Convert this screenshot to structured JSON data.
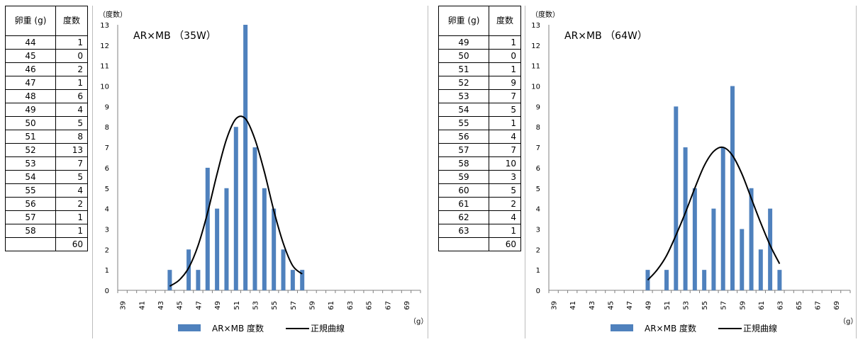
{
  "tables": [
    {
      "header_weight": "卵重 (g)",
      "header_count": "度数",
      "rows": [
        {
          "w": "44",
          "c": "1"
        },
        {
          "w": "45",
          "c": "0"
        },
        {
          "w": "46",
          "c": "2"
        },
        {
          "w": "47",
          "c": "1"
        },
        {
          "w": "48",
          "c": "6"
        },
        {
          "w": "49",
          "c": "4"
        },
        {
          "w": "50",
          "c": "5"
        },
        {
          "w": "51",
          "c": "8"
        },
        {
          "w": "52",
          "c": "13"
        },
        {
          "w": "53",
          "c": "7"
        },
        {
          "w": "54",
          "c": "5"
        },
        {
          "w": "55",
          "c": "4"
        },
        {
          "w": "56",
          "c": "2"
        },
        {
          "w": "57",
          "c": "1"
        },
        {
          "w": "58",
          "c": "1"
        }
      ],
      "total": "60"
    },
    {
      "header_weight": "卵重 (g)",
      "header_count": "度数",
      "rows": [
        {
          "w": "49",
          "c": "1"
        },
        {
          "w": "50",
          "c": "0"
        },
        {
          "w": "51",
          "c": "1"
        },
        {
          "w": "52",
          "c": "9"
        },
        {
          "w": "53",
          "c": "7"
        },
        {
          "w": "54",
          "c": "5"
        },
        {
          "w": "55",
          "c": "1"
        },
        {
          "w": "56",
          "c": "4"
        },
        {
          "w": "57",
          "c": "7"
        },
        {
          "w": "58",
          "c": "10"
        },
        {
          "w": "59",
          "c": "3"
        },
        {
          "w": "60",
          "c": "5"
        },
        {
          "w": "61",
          "c": "2"
        },
        {
          "w": "62",
          "c": "4"
        },
        {
          "w": "63",
          "c": "1"
        }
      ],
      "total": "60"
    }
  ],
  "chart_data": [
    {
      "type": "bar",
      "title": "AR×MB （35W）",
      "ylabel": "（度数）",
      "xlabel": "（g）",
      "x": [
        39,
        40,
        41,
        42,
        43,
        44,
        45,
        46,
        47,
        48,
        49,
        50,
        51,
        52,
        53,
        54,
        55,
        56,
        57,
        58,
        59,
        60,
        61,
        62,
        63,
        64,
        65,
        66,
        67,
        68,
        69,
        70
      ],
      "xticks": [
        "39",
        "41",
        "43",
        "45",
        "47",
        "49",
        "51",
        "53",
        "55",
        "57",
        "59",
        "61",
        "63",
        "65",
        "67",
        "69"
      ],
      "ylim": [
        0,
        13
      ],
      "yticks": [
        "0",
        "1",
        "2",
        "3",
        "4",
        "5",
        "6",
        "7",
        "8",
        "9",
        "10",
        "11",
        "12",
        "13"
      ],
      "series": [
        {
          "name": "AR×MB 度数",
          "type": "bar",
          "color": "#4f81bd",
          "x": [
            44,
            45,
            46,
            47,
            48,
            49,
            50,
            51,
            52,
            53,
            54,
            55,
            56,
            57,
            58
          ],
          "values": [
            1,
            0,
            2,
            1,
            6,
            4,
            5,
            8,
            13,
            7,
            5,
            4,
            2,
            1,
            1
          ]
        },
        {
          "name": "正規曲線",
          "type": "line",
          "color": "#000000",
          "x": [
            44,
            45,
            46,
            47,
            48,
            49,
            50,
            51,
            52,
            53,
            54,
            55,
            56,
            57,
            58
          ],
          "values": [
            0.2,
            0.5,
            1.1,
            2.2,
            3.8,
            5.7,
            7.4,
            8.4,
            8.4,
            7.4,
            5.8,
            3.9,
            2.3,
            1.2,
            0.8
          ]
        }
      ],
      "legend": "bottom"
    },
    {
      "type": "bar",
      "title": "AR×MB （64W）",
      "ylabel": "（度数）",
      "xlabel": "（g）",
      "x": [
        39,
        40,
        41,
        42,
        43,
        44,
        45,
        46,
        47,
        48,
        49,
        50,
        51,
        52,
        53,
        54,
        55,
        56,
        57,
        58,
        59,
        60,
        61,
        62,
        63,
        64,
        65,
        66,
        67,
        68,
        69,
        70
      ],
      "xticks": [
        "39",
        "41",
        "43",
        "45",
        "47",
        "49",
        "51",
        "53",
        "55",
        "57",
        "59",
        "61",
        "63",
        "65",
        "67",
        "69"
      ],
      "ylim": [
        0,
        13
      ],
      "yticks": [
        "0",
        "1",
        "2",
        "3",
        "4",
        "5",
        "6",
        "7",
        "8",
        "9",
        "10",
        "11",
        "12",
        "13"
      ],
      "series": [
        {
          "name": "AR×MB 度数",
          "type": "bar",
          "color": "#4f81bd",
          "x": [
            49,
            50,
            51,
            52,
            53,
            54,
            55,
            56,
            57,
            58,
            59,
            60,
            61,
            62,
            63
          ],
          "values": [
            1,
            0,
            1,
            9,
            7,
            5,
            1,
            4,
            7,
            10,
            3,
            5,
            2,
            4,
            1
          ]
        },
        {
          "name": "正規曲線",
          "type": "line",
          "color": "#000000",
          "x": [
            49,
            50,
            51,
            52,
            53,
            54,
            55,
            56,
            57,
            58,
            59,
            60,
            61,
            62,
            63
          ],
          "values": [
            0.5,
            1.0,
            1.7,
            2.7,
            3.8,
            5.0,
            6.1,
            6.8,
            7.0,
            6.6,
            5.7,
            4.5,
            3.3,
            2.2,
            1.3
          ]
        }
      ],
      "legend": "bottom"
    }
  ]
}
